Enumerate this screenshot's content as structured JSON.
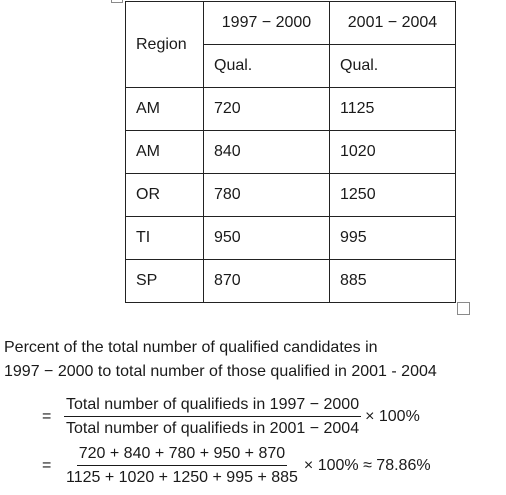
{
  "table": {
    "region_header": "Region",
    "period1_header": "1997 − 2000",
    "period2_header": "2001 − 2004",
    "sub_header_1": "Qual.",
    "sub_header_2": "Qual.",
    "rows": [
      {
        "region": "AM",
        "p1": "720",
        "p2": "1125"
      },
      {
        "region": "AM",
        "p1": "840",
        "p2": "1020"
      },
      {
        "region": "OR",
        "p1": "780",
        "p2": "1250"
      },
      {
        "region": "TI",
        "p1": "950",
        "p2": "995"
      },
      {
        "region": "SP",
        "p1": "870",
        "p2": "885"
      }
    ]
  },
  "text": {
    "line1": "Percent of the total number of qualified candidates in",
    "line2": "1997 − 2000 to total number of those qualified in 2001 - 2004"
  },
  "formula": {
    "eq1": "=",
    "f1_num": "Total number of qualifieds in 1997 − 2000",
    "f1_den": "Total number of qualifieds in 2001 − 2004",
    "f1_after": "× 100%",
    "eq2": "=",
    "f2_num": "720 + 840 + 780 + 950 + 870",
    "f2_den": "1125 + 1020 + 1250 + 995 + 885",
    "f2_after": "× 100% ≈ 78.86%"
  }
}
